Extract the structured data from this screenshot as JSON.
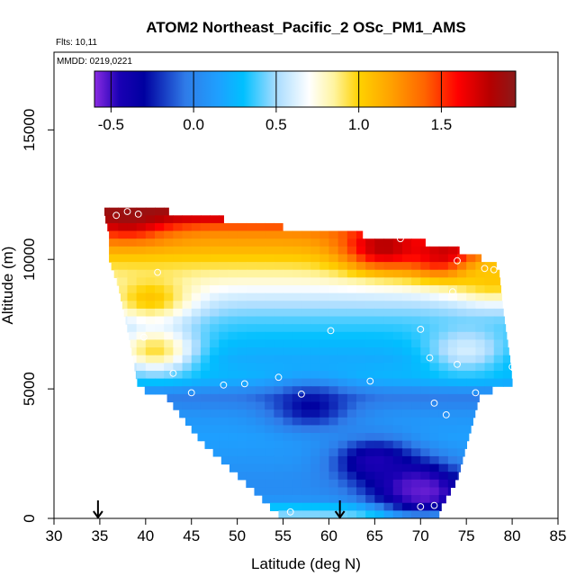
{
  "chart_data": {
    "type": "heatmap",
    "title": "ATOM2 Northeast_Pacific_2 OSc_PM1_AMS",
    "flights_label": "Flts: 10,11",
    "mmdd_label": "MMDD: 0219,0221",
    "xlabel": "Latitude (deg N)",
    "ylabel": "Altitude (m)",
    "xlim": [
      30,
      85
    ],
    "ylim": [
      0,
      18000
    ],
    "x_ticks": [
      30,
      35,
      40,
      45,
      50,
      55,
      60,
      65,
      70,
      75,
      80,
      85
    ],
    "x_tick_labels": [
      "30",
      "35",
      "40",
      "45",
      "50",
      "55",
      "60",
      "65",
      "70",
      "75",
      "80",
      "85"
    ],
    "y_ticks": [
      0,
      5000,
      10000,
      15000
    ],
    "y_tick_labels": [
      "0",
      "5000",
      "10000",
      "15000"
    ],
    "colorbar": {
      "min": -0.6,
      "max": 1.95,
      "ticks": [
        -0.5,
        0.0,
        0.5,
        1.0,
        1.5
      ],
      "tick_labels": [
        "-0.5",
        "0.0",
        "0.5",
        "1.0",
        "1.5"
      ],
      "stops": [
        {
          "v": -0.6,
          "c": "#8a2be2"
        },
        {
          "v": -0.45,
          "c": "#1a00b4"
        },
        {
          "v": -0.3,
          "c": "#0000a0"
        },
        {
          "v": -0.05,
          "c": "#2f7be8"
        },
        {
          "v": 0.15,
          "c": "#1ea0ff"
        },
        {
          "v": 0.3,
          "c": "#00c0ff"
        },
        {
          "v": 0.5,
          "c": "#a8dcff"
        },
        {
          "v": 0.7,
          "c": "#ffffff"
        },
        {
          "v": 0.85,
          "c": "#fff4a0"
        },
        {
          "v": 1.0,
          "c": "#ffd200"
        },
        {
          "v": 1.2,
          "c": "#ffa000"
        },
        {
          "v": 1.4,
          "c": "#ff6400"
        },
        {
          "v": 1.6,
          "c": "#ff0000"
        },
        {
          "v": 1.8,
          "c": "#b40000"
        },
        {
          "v": 1.95,
          "c": "#8b1a1a"
        }
      ]
    },
    "arrow_latitudes": [
      34.8,
      61.2
    ],
    "domain_left_edge": [
      [
        35.5,
        11700
      ],
      [
        36.0,
        11000
      ],
      [
        36.0,
        10000
      ],
      [
        37.0,
        9000
      ],
      [
        38.2,
        7000
      ],
      [
        39.2,
        5000
      ],
      [
        42.0,
        4800
      ],
      [
        46.0,
        3000
      ],
      [
        49.0,
        2000
      ],
      [
        52.0,
        1000
      ],
      [
        54.0,
        300
      ],
      [
        55.0,
        0
      ]
    ],
    "domain_right_edge": [
      [
        39.5,
        12000
      ],
      [
        53.5,
        11300
      ],
      [
        68.0,
        10800
      ],
      [
        73.0,
        10500
      ],
      [
        77.0,
        10000
      ],
      [
        78.5,
        9700
      ],
      [
        79.0,
        8000
      ],
      [
        79.8,
        6000
      ],
      [
        80.0,
        5200
      ],
      [
        76.5,
        4800
      ],
      [
        74.0,
        1500
      ],
      [
        72.0,
        300
      ],
      [
        72.0,
        0
      ]
    ],
    "profile_bands": [
      {
        "alt": 11750,
        "value": 1.85
      },
      {
        "alt": 11100,
        "value": 1.3
      },
      {
        "alt": 10500,
        "value": 1.15
      },
      {
        "alt": 9800,
        "value": 0.95
      },
      {
        "alt": 9100,
        "value": 0.75
      },
      {
        "alt": 8400,
        "value": 0.55
      },
      {
        "alt": 7700,
        "value": 0.4
      },
      {
        "alt": 7000,
        "value": 0.3
      },
      {
        "alt": 6200,
        "value": 0.2
      },
      {
        "alt": 5400,
        "value": 0.25
      },
      {
        "alt": 4700,
        "value": -0.05
      },
      {
        "alt": 3900,
        "value": 0.1
      },
      {
        "alt": 3100,
        "value": 0.15
      },
      {
        "alt": 2300,
        "value": 0.1
      },
      {
        "alt": 1500,
        "value": 0.05
      },
      {
        "alt": 800,
        "value": 0.05
      },
      {
        "alt": 250,
        "value": 0.45
      }
    ],
    "features": [
      {
        "lat": 38.0,
        "alt": 11800,
        "value": 1.9
      },
      {
        "lat": 66.0,
        "alt": 10500,
        "value": 1.8
      },
      {
        "lat": 73.0,
        "alt": 10200,
        "value": 1.8
      },
      {
        "lat": 40.5,
        "alt": 8500,
        "value": 1.05
      },
      {
        "lat": 41.0,
        "alt": 6500,
        "value": 0.95
      },
      {
        "lat": 78.0,
        "alt": 9300,
        "value": 1.05
      },
      {
        "lat": 65.0,
        "alt": 2200,
        "value": -0.45
      },
      {
        "lat": 69.0,
        "alt": 1300,
        "value": -0.45
      },
      {
        "lat": 70.5,
        "alt": 1000,
        "value": -0.55
      },
      {
        "lat": 58.0,
        "alt": 4300,
        "value": -0.3
      },
      {
        "lat": 75.0,
        "alt": 6500,
        "value": 0.6
      }
    ],
    "sample_points": [
      {
        "lat": 36.8,
        "alt": 11700
      },
      {
        "lat": 38.0,
        "alt": 11850
      },
      {
        "lat": 39.2,
        "alt": 11750
      },
      {
        "lat": 67.8,
        "alt": 10800
      },
      {
        "lat": 74.0,
        "alt": 9950
      },
      {
        "lat": 41.3,
        "alt": 9500
      },
      {
        "lat": 77.0,
        "alt": 9650
      },
      {
        "lat": 78.0,
        "alt": 9600
      },
      {
        "lat": 73.5,
        "alt": 8750
      },
      {
        "lat": 39.8,
        "alt": 7000
      },
      {
        "lat": 60.2,
        "alt": 7250
      },
      {
        "lat": 70.0,
        "alt": 7300
      },
      {
        "lat": 71.0,
        "alt": 6200
      },
      {
        "lat": 74.0,
        "alt": 5950
      },
      {
        "lat": 80.0,
        "alt": 5850
      },
      {
        "lat": 43.0,
        "alt": 5600
      },
      {
        "lat": 54.5,
        "alt": 5450
      },
      {
        "lat": 64.5,
        "alt": 5300
      },
      {
        "lat": 48.5,
        "alt": 5150
      },
      {
        "lat": 50.8,
        "alt": 5200
      },
      {
        "lat": 45.0,
        "alt": 4850
      },
      {
        "lat": 57.0,
        "alt": 4800
      },
      {
        "lat": 76.0,
        "alt": 4850
      },
      {
        "lat": 71.5,
        "alt": 4450
      },
      {
        "lat": 72.8,
        "alt": 4000
      },
      {
        "lat": 55.8,
        "alt": 250
      },
      {
        "lat": 70.0,
        "alt": 450
      },
      {
        "lat": 71.5,
        "alt": 500
      }
    ]
  }
}
